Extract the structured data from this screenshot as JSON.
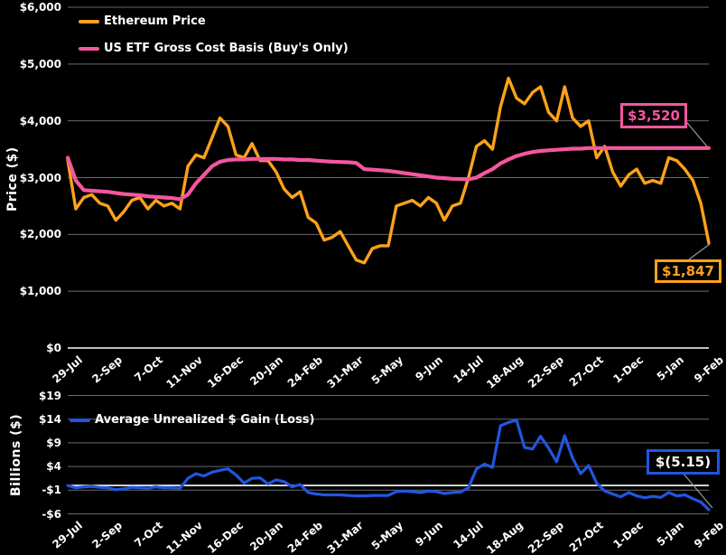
{
  "page": {
    "background": "#000000",
    "grid_color": "#6a6a6a",
    "zero_line_color": "#ffffff",
    "leader_line_color": "#9a9a9a"
  },
  "chart_data": [
    {
      "type": "line",
      "panel": "price",
      "title": "",
      "xlabel": "",
      "ylabel": "Price ($)",
      "ylim": [
        0,
        6000
      ],
      "grid": true,
      "legend_position": "top-left",
      "ytick_values": [
        0,
        1000,
        2000,
        3000,
        4000,
        5000,
        6000
      ],
      "ytick_labels": [
        "$0",
        "$1,000",
        "$2,000",
        "$3,000",
        "$4,000",
        "$5,000",
        "$6,000"
      ],
      "x_tick_labels": [
        "29-Jul",
        "2-Sep",
        "7-Oct",
        "11-Nov",
        "16-Dec",
        "20-Jan",
        "24-Feb",
        "31-Mar",
        "5-May",
        "9-Jun",
        "14-Jul",
        "18-Aug",
        "22-Sep",
        "27-Oct",
        "1-Dec",
        "5-Jan",
        "9-Feb"
      ],
      "series": [
        {
          "name": "Ethereum Price",
          "color": "#FFA21A",
          "values": [
            3310,
            2450,
            2650,
            2700,
            2550,
            2500,
            2250,
            2400,
            2600,
            2650,
            2450,
            2600,
            2500,
            2550,
            2450,
            3200,
            3400,
            3350,
            3700,
            4050,
            3900,
            3400,
            3350,
            3600,
            3300,
            3300,
            3100,
            2800,
            2650,
            2750,
            2300,
            2200,
            1900,
            1950,
            2050,
            1800,
            1550,
            1500,
            1750,
            1800,
            1800,
            2500,
            2550,
            2600,
            2500,
            2650,
            2550,
            2250,
            2500,
            2550,
            3000,
            3550,
            3650,
            3500,
            4250,
            4750,
            4400,
            4300,
            4500,
            4600,
            4150,
            4000,
            4600,
            4050,
            3900,
            4000,
            3350,
            3550,
            3100,
            2850,
            3050,
            3150,
            2900,
            2950,
            2900,
            3350,
            3300,
            3150,
            2950,
            2550,
            1847
          ]
        },
        {
          "name": "US ETF Gross Cost Basis (Buy's Only)",
          "color": "#F4569F",
          "values": [
            3350,
            2950,
            2780,
            2770,
            2760,
            2750,
            2730,
            2710,
            2700,
            2690,
            2670,
            2660,
            2650,
            2640,
            2620,
            2700,
            2900,
            3050,
            3200,
            3280,
            3310,
            3320,
            3320,
            3330,
            3330,
            3330,
            3330,
            3320,
            3320,
            3310,
            3310,
            3300,
            3290,
            3280,
            3275,
            3270,
            3260,
            3150,
            3140,
            3130,
            3120,
            3100,
            3080,
            3060,
            3040,
            3020,
            3000,
            2990,
            2980,
            2975,
            2970,
            3000,
            3080,
            3150,
            3250,
            3320,
            3380,
            3420,
            3450,
            3470,
            3480,
            3490,
            3500,
            3510,
            3510,
            3520,
            3520,
            3520,
            3520,
            3520,
            3520,
            3520,
            3520,
            3520,
            3520,
            3520,
            3520,
            3520,
            3520,
            3520,
            3520
          ]
        }
      ],
      "annotations": [
        {
          "label": "$3,520",
          "series": "US ETF Gross Cost Basis (Buy's Only)",
          "value": 3520,
          "color": "#F4569F",
          "text_color": "#F4569F"
        },
        {
          "label": "$1,847",
          "series": "Ethereum Price",
          "value": 1847,
          "color": "#FFA21A",
          "text_color": "#FFA21A"
        }
      ]
    },
    {
      "type": "line",
      "panel": "billions",
      "title": "",
      "xlabel": "",
      "ylabel": "Billions ($)",
      "ylim": [
        -6,
        19
      ],
      "grid": true,
      "legend_position": "top-left",
      "ytick_values": [
        -6,
        -1,
        4,
        9,
        14,
        19
      ],
      "ytick_labels": [
        "-$6",
        "-$1",
        "$4",
        "$9",
        "$14",
        "$19"
      ],
      "x_tick_labels": [
        "29-Jul",
        "2-Sep",
        "7-Oct",
        "11-Nov",
        "16-Dec",
        "20-Jan",
        "24-Feb",
        "31-Mar",
        "5-May",
        "9-Jun",
        "14-Jul",
        "18-Aug",
        "22-Sep",
        "27-Oct",
        "1-Dec",
        "5-Jan",
        "9-Feb"
      ],
      "series": [
        {
          "name": "Average Unrealized $ Gain (Loss)",
          "color": "#2156E0",
          "values": [
            0.0,
            -0.5,
            -0.3,
            -0.2,
            -0.4,
            -0.5,
            -0.9,
            -0.7,
            -0.4,
            -0.5,
            -0.6,
            -0.3,
            -0.5,
            -0.5,
            -0.6,
            1.5,
            2.5,
            2.0,
            2.8,
            3.2,
            3.5,
            2.2,
            0.5,
            1.5,
            1.6,
            0.3,
            1.2,
            0.8,
            -0.3,
            0.2,
            -1.5,
            -1.8,
            -2.0,
            -2.0,
            -2.0,
            -2.1,
            -2.2,
            -2.2,
            -2.1,
            -2.1,
            -2.1,
            -1.3,
            -1.2,
            -1.3,
            -1.5,
            -1.2,
            -1.3,
            -1.7,
            -1.5,
            -1.4,
            -0.5,
            3.5,
            4.5,
            3.8,
            12.6,
            13.3,
            13.8,
            8.0,
            7.7,
            10.4,
            7.9,
            5.0,
            10.5,
            5.8,
            2.5,
            4.2,
            0.5,
            -1.2,
            -1.8,
            -2.4,
            -1.5,
            -2.2,
            -2.6,
            -2.3,
            -2.5,
            -1.5,
            -2.2,
            -2.0,
            -2.8,
            -3.5,
            -5.15
          ]
        }
      ],
      "annotations": [
        {
          "label": "$(5.15)",
          "series": "Average Unrealized $ Gain (Loss)",
          "value": -5.15,
          "color": "#2156E0",
          "text_color": "#FFFFFF"
        }
      ]
    }
  ]
}
